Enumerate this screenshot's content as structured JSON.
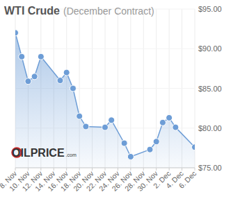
{
  "chart_data": {
    "type": "line",
    "title": "WTI Crude",
    "subtitle": "(December Contract)",
    "annotations": [
      "OILPRICE",
      ".com"
    ],
    "x": [
      8,
      9,
      10,
      11,
      12,
      15,
      16,
      17,
      18,
      19,
      22,
      23,
      25,
      26,
      29,
      30,
      31,
      32,
      33,
      36
    ],
    "values": [
      92.0,
      89.0,
      85.9,
      86.5,
      89.0,
      86.0,
      87.0,
      85.0,
      81.5,
      80.2,
      80.1,
      81.0,
      78.1,
      76.4,
      77.3,
      78.3,
      80.7,
      81.3,
      80.1,
      77.6
    ],
    "color": "#6d9dd6",
    "marker": "circle",
    "xlim": [
      8,
      36
    ],
    "xticks": [
      {
        "value": 8,
        "label": "8. Nov"
      },
      {
        "value": 10,
        "label": "10. Nov"
      },
      {
        "value": 12,
        "label": "12. Nov"
      },
      {
        "value": 14,
        "label": "14. Nov"
      },
      {
        "value": 16,
        "label": "16. Nov"
      },
      {
        "value": 18,
        "label": "18. Nov"
      },
      {
        "value": 20,
        "label": "20. Nov"
      },
      {
        "value": 22,
        "label": "22. Nov"
      },
      {
        "value": 24,
        "label": "24. Nov"
      },
      {
        "value": 26,
        "label": "26. Nov"
      },
      {
        "value": 28,
        "label": "28. Nov"
      },
      {
        "value": 30,
        "label": "30. Nov"
      },
      {
        "value": 32,
        "label": "2. Dec"
      },
      {
        "value": 34,
        "label": "4. Dec"
      },
      {
        "value": 36,
        "label": "6. Dec"
      }
    ],
    "ylim": [
      75,
      95
    ],
    "yticks": [
      {
        "value": 95,
        "label": "$95.00"
      },
      {
        "value": 90,
        "label": "$90.00"
      },
      {
        "value": 85,
        "label": "$85.00"
      },
      {
        "value": 80,
        "label": "$80.00"
      },
      {
        "value": 75,
        "label": "$75.00"
      }
    ],
    "grid": true
  }
}
